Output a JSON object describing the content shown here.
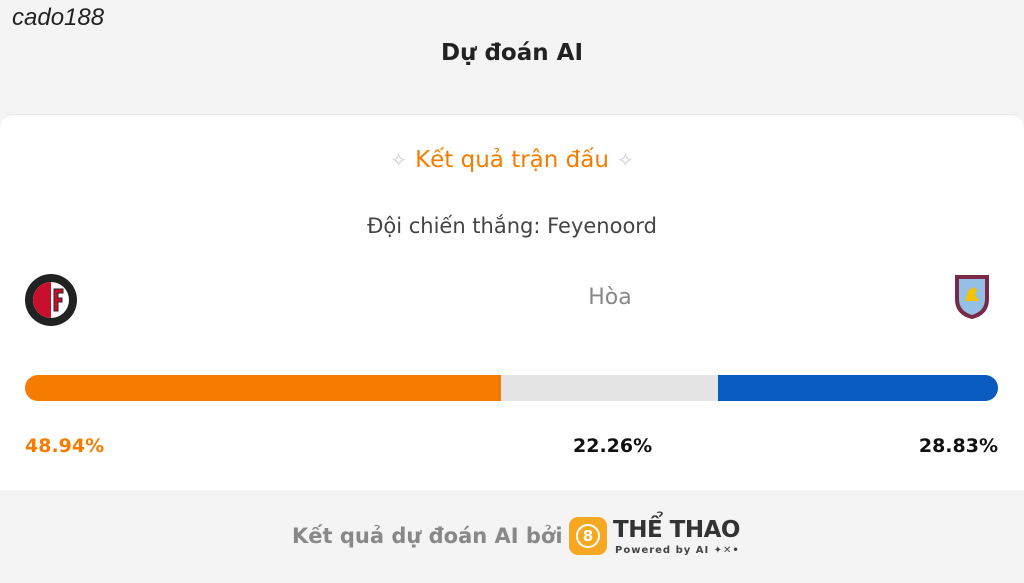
{
  "watermark": "cado188",
  "header": {
    "title": "Dự đoán AI"
  },
  "result": {
    "heading": "Kết quả trận đấu",
    "winner": "Đội chiến thắng: Feyenoord",
    "center_label": "Hòa"
  },
  "predictions": [
    {
      "name": "Feyenoord",
      "color": "#f57c00",
      "share": {
        "value": 48.94,
        "label": "48.94%"
      },
      "label_color": "#f57c00"
    },
    {
      "name": "Hòa",
      "color": "#e5e5e5",
      "share": {
        "value": 22.26,
        "label": "22.26%"
      },
      "label_color": "#111111"
    },
    {
      "name": "Aston Villa",
      "color": "#0a5bbf",
      "share": {
        "value": 28.83,
        "label": "28.83%"
      },
      "label_color": "#111111"
    }
  ],
  "footer": {
    "text": "Kết quả dự đoán AI bởi",
    "logo_mark": "8",
    "brand": "THỂ THAO",
    "powered": "Powered by AI ✦✕•"
  }
}
